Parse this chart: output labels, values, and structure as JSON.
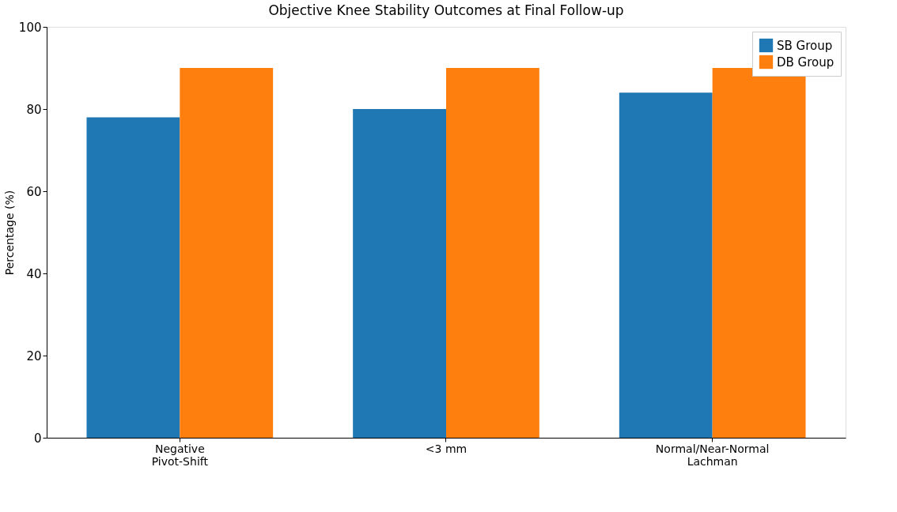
{
  "chart_data": {
    "type": "bar",
    "title": "Objective Knee Stability Outcomes at Final Follow-up",
    "ylabel": "Percentage (%)",
    "categories": [
      "Negative\nPivot-Shift",
      "<3 mm",
      "Normal/Near-Normal\nLachman"
    ],
    "series": [
      {
        "name": "SB Group",
        "color": "#1f77b4",
        "values": [
          78,
          80,
          84
        ]
      },
      {
        "name": "DB Group",
        "color": "#ff7f0e",
        "values": [
          90,
          90,
          90
        ]
      }
    ],
    "ylim": [
      0,
      100
    ],
    "yticks": [
      0,
      20,
      40,
      60,
      80,
      100
    ],
    "grid": false,
    "legend": "top right"
  }
}
